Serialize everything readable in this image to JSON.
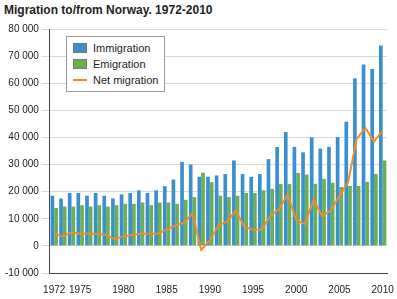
{
  "chart_data": {
    "type": "bar",
    "title": "Migration to/from Norway. 1972-2010",
    "categories": [
      "1972",
      null,
      null,
      "1975",
      null,
      null,
      null,
      null,
      "1980",
      null,
      null,
      null,
      null,
      "1985",
      null,
      null,
      null,
      null,
      "1990",
      null,
      null,
      null,
      null,
      "1995",
      null,
      null,
      null,
      null,
      "2000",
      null,
      null,
      null,
      null,
      "2005",
      null,
      null,
      null,
      null,
      "2010"
    ],
    "series": [
      {
        "name": "Immigration",
        "type": "bar",
        "color": "#3a8fd0",
        "values": [
          18500,
          17500,
          19500,
          19500,
          18500,
          19500,
          18500,
          17500,
          19000,
          19500,
          20500,
          19500,
          20500,
          22000,
          24500,
          31000,
          30000,
          25500,
          25500,
          26000,
          26500,
          31500,
          26500,
          25500,
          26500,
          32000,
          36500,
          42000,
          36500,
          34500,
          40000,
          35900,
          36500,
          40100,
          45800,
          61800,
          66900,
          65200,
          73900
        ]
      },
      {
        "name": "Emigration",
        "type": "bar",
        "color": "#6ab04c",
        "values": [
          14000,
          14500,
          14500,
          15000,
          14500,
          15000,
          14500,
          15000,
          15500,
          15500,
          16000,
          15000,
          16000,
          16000,
          15500,
          17000,
          18000,
          27000,
          23500,
          18500,
          18000,
          18500,
          19500,
          19500,
          20500,
          21000,
          22800,
          22800,
          26900,
          26300,
          22900,
          24700,
          23300,
          21700,
          22100,
          22100,
          23600,
          26500,
          31500
        ]
      },
      {
        "name": "Net migration",
        "type": "line",
        "color": "#f28c28",
        "line_style": "solid",
        "values": [
          4500,
          3500,
          5000,
          4500,
          4500,
          4500,
          4000,
          2500,
          3500,
          4000,
          4500,
          4500,
          4500,
          6000,
          7500,
          8500,
          12000,
          -1500,
          2000,
          7500,
          9000,
          13000,
          7000,
          6000,
          6000,
          11000,
          13500,
          19000,
          9500,
          8000,
          17000,
          11000,
          13000,
          18500,
          23500,
          39500,
          43500,
          38500,
          42500
        ]
      }
    ],
    "ylim": [
      -10000,
      80000
    ],
    "yticks": [
      {
        "value": -10000,
        "label": "-10 000"
      },
      0,
      {
        "value": 10000,
        "label": "10 000"
      },
      {
        "value": 20000,
        "label": "20 000"
      },
      {
        "value": 30000,
        "label": "30 000"
      },
      {
        "value": 40000,
        "label": "40 000"
      },
      {
        "value": 50000,
        "label": "50 000"
      },
      {
        "value": 60000,
        "label": "60 000"
      },
      {
        "value": 70000,
        "label": "70 000"
      },
      {
        "value": 80000,
        "label": "80 000"
      }
    ],
    "grid": true,
    "legend": "upper left"
  }
}
